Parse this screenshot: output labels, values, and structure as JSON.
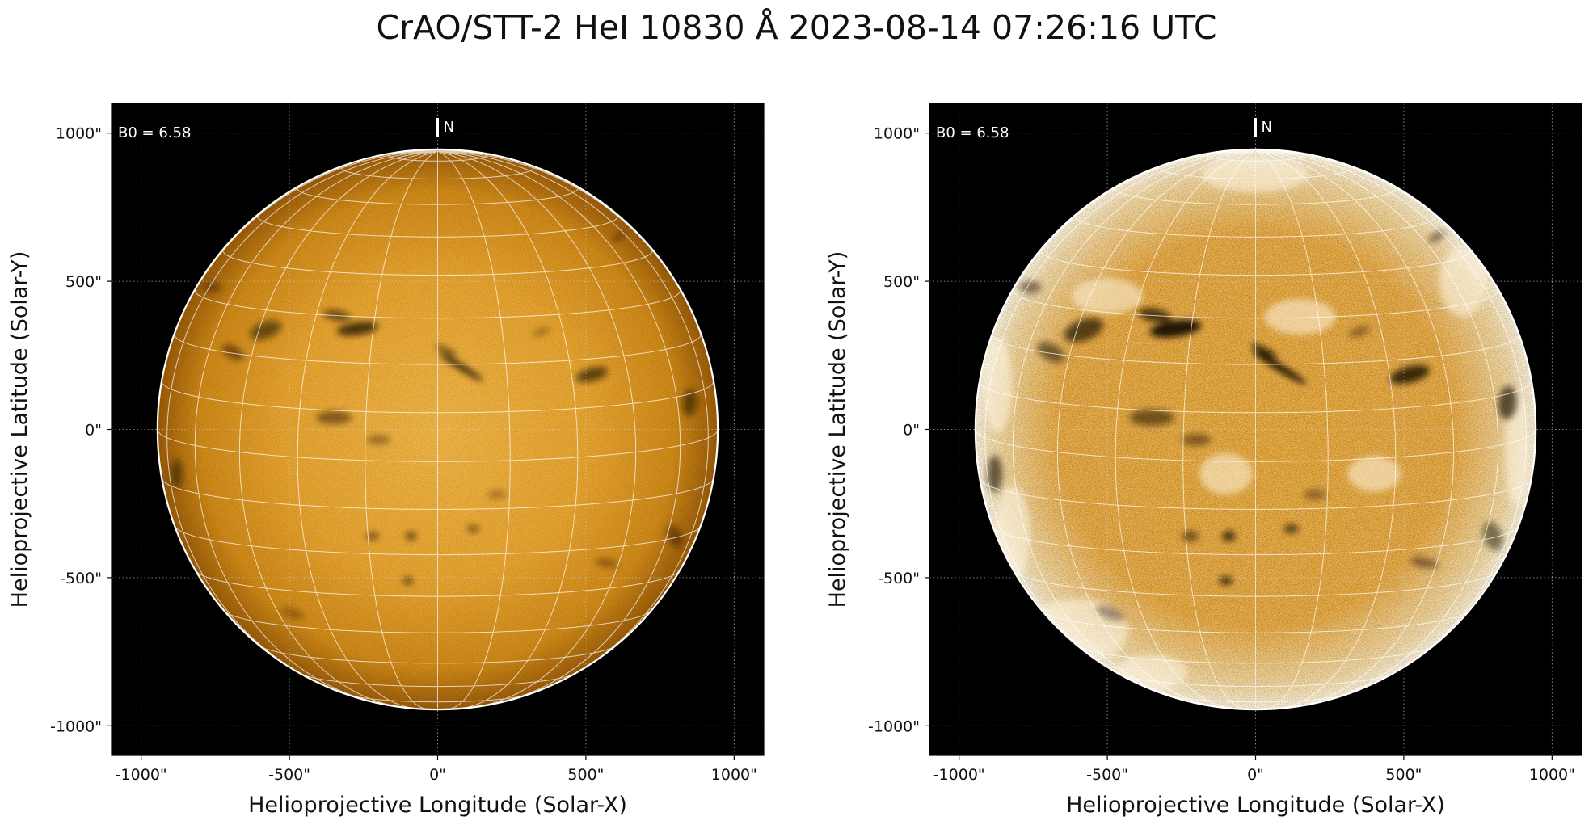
{
  "figure": {
    "title": "CrAO/STT-2 HeI 10830 Å 2023-08-14 07:26:16 UTC",
    "background": "#ffffff"
  },
  "colors": {
    "plot_background": "#000000",
    "disk_bright": "#f2b23c",
    "disk_mid": "#d9901a",
    "disk_limb": "#a8640a",
    "filament": "#1a0e02",
    "grid": "#ffffff",
    "enhanced_white": "#fff6e2"
  },
  "panels": [
    {
      "id": "left",
      "annotation": "B0 = 6.58",
      "north_label": "N",
      "xlabel": "Helioprojective Longitude (Solar-X)",
      "ylabel": "Helioprojective Latitude (Solar-Y)",
      "xticks": [
        "-1000\"",
        "-500\"",
        "0\"",
        "500\"",
        "1000\""
      ],
      "yticks": [
        "1000\"",
        "500\"",
        "0\"",
        "-500\"",
        "-1000\""
      ],
      "xtick_values": [
        -1000,
        -500,
        0,
        500,
        1000
      ],
      "ytick_values": [
        1000,
        500,
        0,
        -500,
        -1000
      ],
      "extent": [
        -1100,
        1100
      ],
      "solar_radius_arcsec": 945,
      "b0_deg": 6.58,
      "style": "limb-darkened"
    },
    {
      "id": "right",
      "annotation": "B0 = 6.58",
      "north_label": "N",
      "xlabel": "Helioprojective Longitude (Solar-X)",
      "ylabel": "Helioprojective Latitude (Solar-Y)",
      "xticks": [
        "-1000\"",
        "-500\"",
        "0\"",
        "500\"",
        "1000\""
      ],
      "yticks": [
        "1000\"",
        "500\"",
        "0\"",
        "-500\"",
        "-1000\""
      ],
      "xtick_values": [
        -1000,
        -500,
        0,
        500,
        1000
      ],
      "ytick_values": [
        1000,
        500,
        0,
        -500,
        -1000
      ],
      "extent": [
        -1100,
        1100
      ],
      "solar_radius_arcsec": 945,
      "b0_deg": 6.58,
      "style": "enhanced"
    }
  ]
}
